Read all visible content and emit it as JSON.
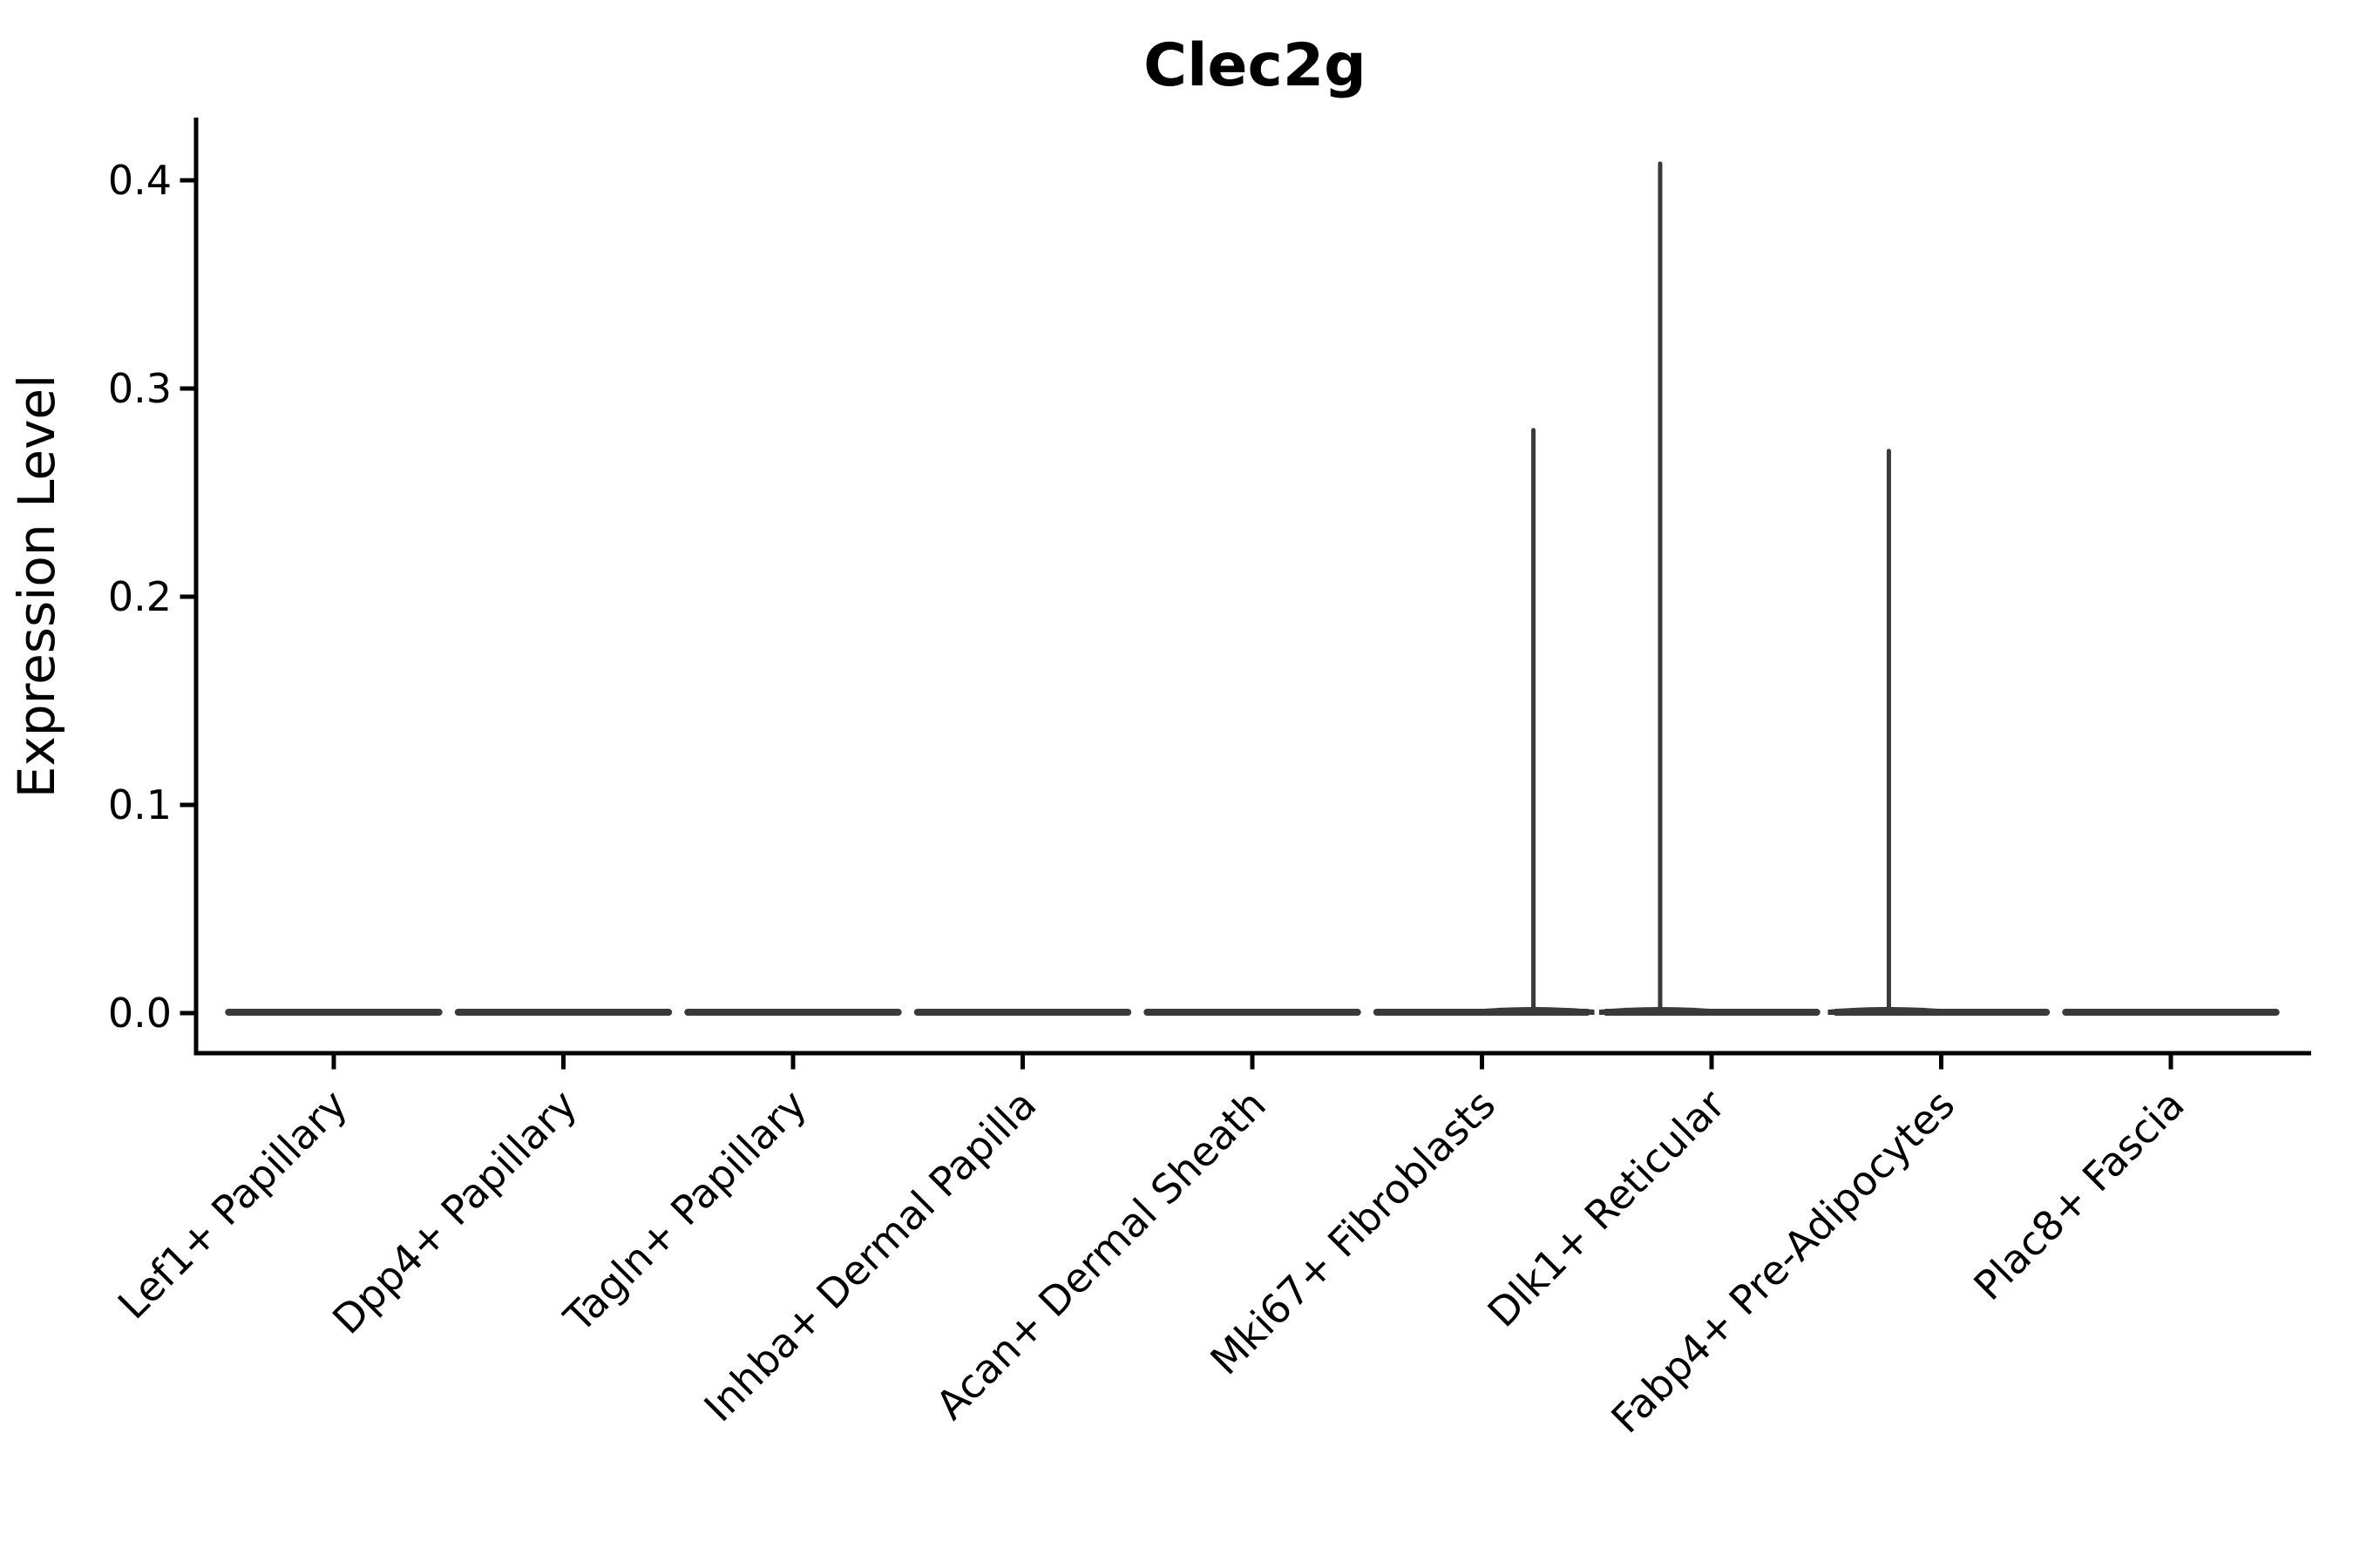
{
  "chart_data": {
    "type": "violin",
    "title": "Clec2g",
    "ylabel": "Expression Level",
    "xlabel": "",
    "ytick_labels": [
      "0.0",
      "0.1",
      "0.2",
      "0.3",
      "0.4"
    ],
    "ytick_values": [
      0.0,
      0.1,
      0.2,
      0.3,
      0.4
    ],
    "ylim": [
      -0.019,
      0.43
    ],
    "grid": false,
    "legend": null,
    "categories": [
      "Lef1+ Papillary",
      "Dpp4+ Papillary",
      "Tagln+ Papillary",
      "Inhba+ Dermal Papilla",
      "Acan+ Dermal Sheath",
      "Mki67+ Fibroblasts",
      "Dlk1+ Reticular",
      "Fabp4+ Pre-Adipocytes",
      "Plac8+ Fascia"
    ],
    "violins": [
      {
        "category": "Lef1+ Papillary",
        "bulk_at": 0.0,
        "max_expression": 0.0,
        "spike": null
      },
      {
        "category": "Dpp4+ Papillary",
        "bulk_at": 0.0,
        "max_expression": 0.0,
        "spike": null
      },
      {
        "category": "Tagln+ Papillary",
        "bulk_at": 0.0,
        "max_expression": 0.0,
        "spike": null
      },
      {
        "category": "Inhba+ Dermal Papilla",
        "bulk_at": 0.0,
        "max_expression": 0.0,
        "spike": null
      },
      {
        "category": "Acan+ Dermal Sheath",
        "bulk_at": 0.0,
        "max_expression": 0.0,
        "spike": null
      },
      {
        "category": "Mki67+ Fibroblasts",
        "bulk_at": 0.0,
        "max_expression": 0.28,
        "spike": {
          "value": 0.28,
          "x_offset_frac": 0.224
        }
      },
      {
        "category": "Dlk1+ Reticular",
        "bulk_at": 0.0,
        "max_expression": 0.41,
        "spike": {
          "value": 0.408,
          "x_offset_frac": -0.224
        }
      },
      {
        "category": "Fabp4+ Pre-Adipocytes",
        "bulk_at": 0.0,
        "max_expression": 0.27,
        "spike": {
          "value": 0.27,
          "x_offset_frac": -0.228
        }
      },
      {
        "category": "Plac8+ Fascia",
        "bulk_at": 0.0,
        "max_expression": 0.0,
        "spike": null
      }
    ],
    "violin_half_width_frac": 0.458,
    "colors": {
      "background": "#ffffff",
      "axis": "#000000",
      "text": "#000000",
      "violin_stroke": "#3a3a3a"
    }
  }
}
